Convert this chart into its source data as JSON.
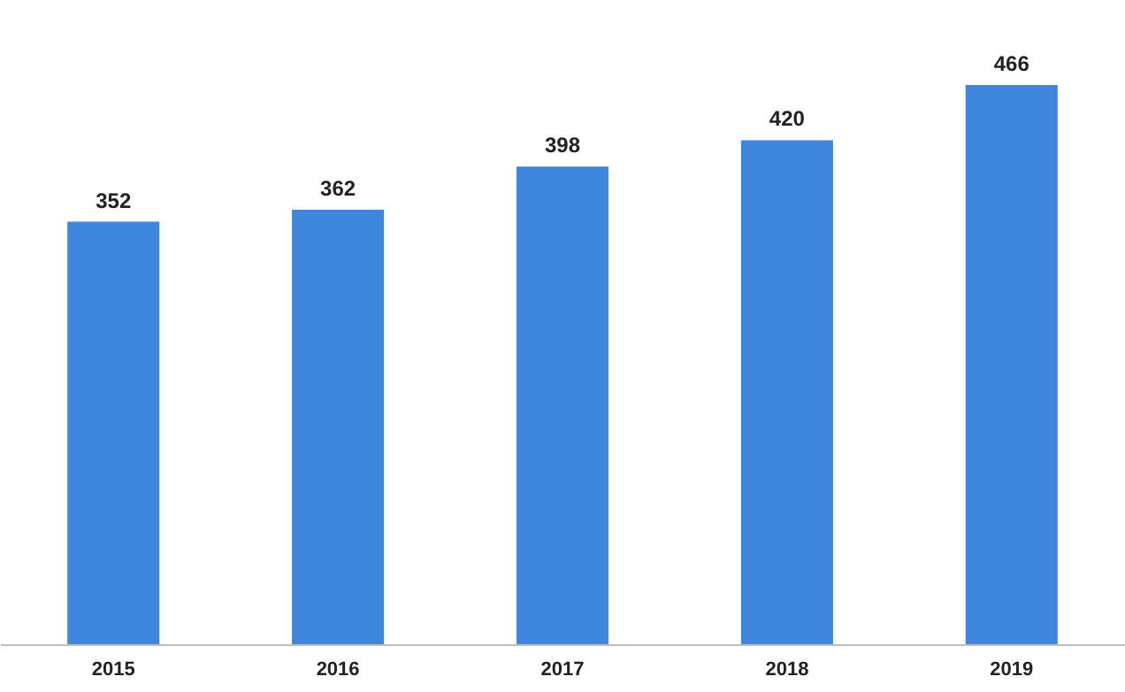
{
  "chart_data": {
    "type": "bar",
    "categories": [
      "2015",
      "2016",
      "2017",
      "2018",
      "2019"
    ],
    "values": [
      352,
      362,
      398,
      420,
      466
    ],
    "color": "#3f86dd",
    "data_labels": true,
    "grid": false
  }
}
